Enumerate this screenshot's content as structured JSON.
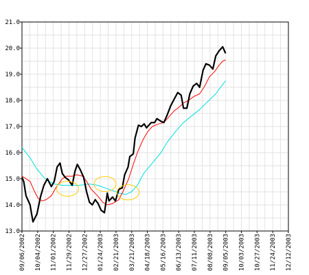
{
  "chart_data": {
    "type": "line",
    "title": "",
    "xlabel": "",
    "ylabel": "",
    "ylim": [
      13.0,
      21.0
    ],
    "yticks": [
      "13.0",
      "14.0",
      "15.0",
      "16.0",
      "17.0",
      "18.0",
      "19.0",
      "20.0",
      "21.0"
    ],
    "xlim": [
      "09/06/2002",
      "12/12/2003"
    ],
    "xticks": [
      "09/06/2002",
      "10/04/2002",
      "11/01/2002",
      "11/29/2002",
      "12/27/2002",
      "01/24/2003",
      "02/21/2003",
      "03/21/2003",
      "04/18/2003",
      "05/16/2003",
      "06/13/2003",
      "07/11/2003",
      "08/08/2003",
      "09/05/2003",
      "10/03/2003",
      "10/27/2003",
      "11/24/2003",
      "12/12/2003"
    ],
    "grid": true,
    "legend": "none",
    "series": [
      {
        "color": "#000000",
        "points": [
          [
            "09/06/2002",
            15.05
          ],
          [
            "09/09/2002",
            14.9
          ],
          [
            "09/13/2002",
            14.35
          ],
          [
            "09/20/2002",
            14.0
          ],
          [
            "09/25/2002",
            13.35
          ],
          [
            "10/02/2002",
            13.65
          ],
          [
            "10/08/2002",
            14.3
          ],
          [
            "10/14/2002",
            14.75
          ],
          [
            "10/20/2002",
            15.0
          ],
          [
            "10/27/2002",
            14.7
          ],
          [
            "11/01/2002",
            14.9
          ],
          [
            "11/06/2002",
            15.45
          ],
          [
            "11/11/2002",
            15.6
          ],
          [
            "11/15/2002",
            15.2
          ],
          [
            "11/20/2002",
            15.05
          ],
          [
            "11/26/2002",
            14.95
          ],
          [
            "12/02/2002",
            14.75
          ],
          [
            "12/07/2002",
            15.3
          ],
          [
            "12/11/2002",
            15.55
          ],
          [
            "12/16/2002",
            15.35
          ],
          [
            "12/22/2002",
            15.05
          ],
          [
            "12/27/2002",
            14.5
          ],
          [
            "01/01/2003",
            14.1
          ],
          [
            "01/06/2003",
            14.0
          ],
          [
            "01/11/2003",
            14.2
          ],
          [
            "01/16/2003",
            14.05
          ],
          [
            "01/21/2003",
            13.8
          ],
          [
            "01/27/2003",
            13.7
          ],
          [
            "02/01/2003",
            14.45
          ],
          [
            "02/04/2003",
            14.15
          ],
          [
            "02/10/2003",
            14.3
          ],
          [
            "02/15/2003",
            14.15
          ],
          [
            "02/21/2003",
            14.6
          ],
          [
            "02/27/2003",
            14.65
          ],
          [
            "03/03/2003",
            15.15
          ],
          [
            "03/09/2003",
            15.45
          ],
          [
            "03/12/2003",
            15.85
          ],
          [
            "03/18/2003",
            15.95
          ],
          [
            "03/21/2003",
            16.55
          ],
          [
            "03/27/2003",
            17.05
          ],
          [
            "04/01/2003",
            17.0
          ],
          [
            "04/06/2003",
            17.1
          ],
          [
            "04/10/2003",
            16.95
          ],
          [
            "04/18/2003",
            17.15
          ],
          [
            "04/24/2003",
            17.15
          ],
          [
            "04/28/2003",
            17.3
          ],
          [
            "05/05/2003",
            17.2
          ],
          [
            "05/10/2003",
            17.15
          ],
          [
            "05/16/2003",
            17.45
          ],
          [
            "05/22/2003",
            17.8
          ],
          [
            "05/28/2003",
            18.05
          ],
          [
            "06/03/2003",
            18.3
          ],
          [
            "06/09/2003",
            18.2
          ],
          [
            "06/13/2003",
            17.7
          ],
          [
            "06/19/2003",
            17.7
          ],
          [
            "06/24/2003",
            18.25
          ],
          [
            "06/30/2003",
            18.55
          ],
          [
            "07/06/2003",
            18.65
          ],
          [
            "07/11/2003",
            18.5
          ],
          [
            "07/17/2003",
            19.15
          ],
          [
            "07/22/2003",
            19.4
          ],
          [
            "07/28/2003",
            19.35
          ],
          [
            "08/03/2003",
            19.2
          ],
          [
            "08/08/2003",
            19.7
          ],
          [
            "08/14/2003",
            19.9
          ],
          [
            "08/20/2003",
            20.05
          ],
          [
            "08/25/2003",
            19.8
          ]
        ]
      },
      {
        "color": "#ff0000",
        "points": [
          [
            "09/06/2002",
            15.1
          ],
          [
            "09/20/2002",
            14.9
          ],
          [
            "09/27/2002",
            14.55
          ],
          [
            "10/04/2002",
            14.25
          ],
          [
            "10/11/2002",
            14.15
          ],
          [
            "10/18/2002",
            14.2
          ],
          [
            "10/27/2002",
            14.35
          ],
          [
            "11/05/2002",
            14.7
          ],
          [
            "11/15/2002",
            15.0
          ],
          [
            "11/22/2002",
            15.1
          ],
          [
            "12/02/2002",
            15.1
          ],
          [
            "12/10/2002",
            15.15
          ],
          [
            "12/20/2002",
            15.1
          ],
          [
            "12/27/2002",
            14.9
          ],
          [
            "01/04/2003",
            14.6
          ],
          [
            "01/15/2003",
            14.35
          ],
          [
            "01/24/2003",
            14.1
          ],
          [
            "02/01/2003",
            14.0
          ],
          [
            "02/10/2003",
            14.05
          ],
          [
            "02/21/2003",
            14.2
          ],
          [
            "03/01/2003",
            14.55
          ],
          [
            "03/10/2003",
            15.0
          ],
          [
            "03/18/2003",
            15.55
          ],
          [
            "03/26/2003",
            16.05
          ],
          [
            "04/04/2003",
            16.5
          ],
          [
            "04/12/2003",
            16.8
          ],
          [
            "04/20/2003",
            17.0
          ],
          [
            "05/01/2003",
            17.1
          ],
          [
            "05/10/2003",
            17.15
          ],
          [
            "05/20/2003",
            17.4
          ],
          [
            "05/28/2003",
            17.6
          ],
          [
            "06/06/2003",
            17.75
          ],
          [
            "06/13/2003",
            17.9
          ],
          [
            "06/22/2003",
            18.0
          ],
          [
            "07/01/2003",
            18.15
          ],
          [
            "07/11/2003",
            18.25
          ],
          [
            "07/20/2003",
            18.55
          ],
          [
            "07/28/2003",
            18.9
          ],
          [
            "08/06/2003",
            19.1
          ],
          [
            "08/14/2003",
            19.35
          ],
          [
            "08/20/2003",
            19.5
          ],
          [
            "08/25/2003",
            19.55
          ]
        ]
      },
      {
        "color": "#00dddd",
        "points": [
          [
            "09/06/2002",
            16.2
          ],
          [
            "09/20/2002",
            15.8
          ],
          [
            "10/01/2002",
            15.4
          ],
          [
            "10/12/2002",
            15.1
          ],
          [
            "10/22/2002",
            14.9
          ],
          [
            "11/01/2002",
            14.8
          ],
          [
            "11/15/2002",
            14.75
          ],
          [
            "12/01/2002",
            14.75
          ],
          [
            "12/15/2002",
            14.75
          ],
          [
            "01/01/2003",
            14.8
          ],
          [
            "01/15/2003",
            14.75
          ],
          [
            "01/28/2003",
            14.65
          ],
          [
            "02/10/2003",
            14.55
          ],
          [
            "02/21/2003",
            14.45
          ],
          [
            "03/05/2003",
            14.4
          ],
          [
            "03/15/2003",
            14.5
          ],
          [
            "03/25/2003",
            14.75
          ],
          [
            "04/05/2003",
            15.2
          ],
          [
            "04/20/2003",
            15.6
          ],
          [
            "05/05/2003",
            16.0
          ],
          [
            "05/16/2003",
            16.4
          ],
          [
            "05/30/2003",
            16.8
          ],
          [
            "06/13/2003",
            17.15
          ],
          [
            "06/27/2003",
            17.4
          ],
          [
            "07/11/2003",
            17.65
          ],
          [
            "07/25/2003",
            17.95
          ],
          [
            "08/08/2003",
            18.25
          ],
          [
            "08/18/2003",
            18.55
          ],
          [
            "08/25/2003",
            18.75
          ]
        ]
      }
    ],
    "annotations": [
      {
        "shape": "ellipse",
        "color": "#ffcc00",
        "center": [
          "11/24/2002",
          14.62
        ]
      },
      {
        "shape": "ellipse",
        "color": "#ffcc00",
        "center": [
          "01/28/2003",
          14.8
        ]
      },
      {
        "shape": "ellipse",
        "color": "#ffcc00",
        "center": [
          "03/09/2003",
          14.48
        ]
      }
    ]
  }
}
